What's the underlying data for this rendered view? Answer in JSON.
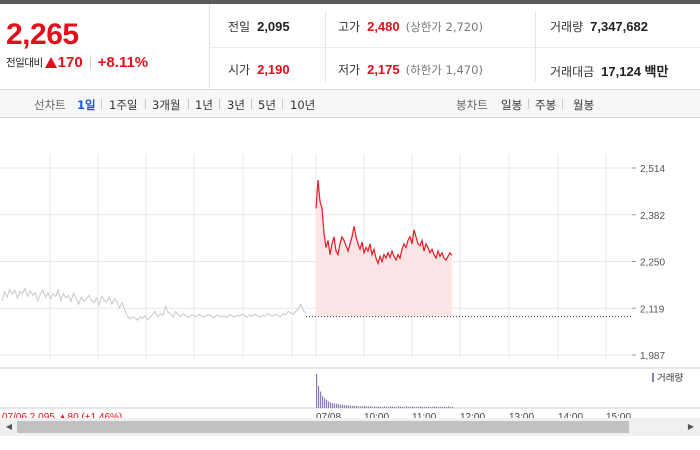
{
  "summary": {
    "current_price": "2,265",
    "change_label": "전일대비",
    "change_value": "170",
    "change_rate": "+8.11%",
    "prev_close_label": "전일",
    "prev_close": "2,095",
    "open_label": "시가",
    "open": "2,190",
    "high_label": "고가",
    "high": "2,480",
    "upper_limit": "(상한가 2,720)",
    "low_label": "저가",
    "low": "2,175",
    "lower_limit": "(하한가 1,470)",
    "volume_label": "거래량",
    "volume": "7,347,682",
    "amount_label": "거래대금",
    "amount": "17,124 백만"
  },
  "tabbar": {
    "line_title": "선차트",
    "line_tabs": [
      {
        "label": "1일",
        "active": true
      },
      {
        "label": "1주일",
        "active": false
      },
      {
        "label": "3개월",
        "active": false
      },
      {
        "label": "1년",
        "active": false
      },
      {
        "label": "3년",
        "active": false
      },
      {
        "label": "5년",
        "active": false
      },
      {
        "label": "10년",
        "active": false
      }
    ],
    "candle_title": "봉차트",
    "candle_tabs": [
      {
        "label": "일봉"
      },
      {
        "label": "주봉"
      },
      {
        "label": "월봉"
      }
    ]
  },
  "chart_data": {
    "type": "line",
    "y_ticks": [
      "2,514",
      "2,382",
      "2,250",
      "2,119",
      "1,987"
    ],
    "ylim": [
      1987,
      2514
    ],
    "reference_line": 2095,
    "volume_legend": "거래량",
    "colors": {
      "prev_day_line": "#c8c8c8",
      "today_line": "#e31b23",
      "today_fill": "#fde4e6",
      "volume_bars": "#8d7bb8",
      "grid": "#e9e9e9"
    },
    "prev_day_series": [
      2140,
      2165,
      2150,
      2172,
      2158,
      2170,
      2148,
      2166,
      2160,
      2175,
      2152,
      2168,
      2155,
      2162,
      2140,
      2158,
      2170,
      2150,
      2162,
      2145,
      2160,
      2152,
      2170,
      2140,
      2160,
      2148,
      2155,
      2138,
      2162,
      2146,
      2130,
      2150,
      2138,
      2145,
      2155,
      2140,
      2135,
      2148,
      2128,
      2152,
      2142,
      2136,
      2150,
      2130,
      2145,
      2138,
      2120,
      2135,
      2115,
      2098,
      2088,
      2095,
      2092,
      2085,
      2094,
      2090,
      2098,
      2086,
      2093,
      2102,
      2110,
      2095,
      2104,
      2098,
      2125,
      2108,
      2102,
      2094,
      2110,
      2100,
      2096,
      2104,
      2098,
      2092,
      2100,
      2098,
      2095,
      2102,
      2097,
      2093,
      2099,
      2101,
      2096,
      2092,
      2100,
      2097,
      2094,
      2098,
      2092,
      2101,
      2097,
      2094,
      2099,
      2096,
      2103,
      2098,
      2094,
      2100,
      2096,
      2102,
      2098,
      2093,
      2099,
      2096,
      2104,
      2100,
      2096,
      2102,
      2098,
      2094,
      2104,
      2100,
      2110,
      2106,
      2102,
      2110,
      2118,
      2130,
      2112,
      2104
    ],
    "today_series": [
      2400,
      2480,
      2420,
      2400,
      2330,
      2290,
      2310,
      2270,
      2300,
      2320,
      2280,
      2270,
      2300,
      2320,
      2310,
      2295,
      2280,
      2300,
      2320,
      2350,
      2320,
      2300,
      2285,
      2305,
      2275,
      2290,
      2280,
      2300,
      2270,
      2285,
      2260,
      2245,
      2265,
      2250,
      2270,
      2260,
      2275,
      2262,
      2280,
      2265,
      2255,
      2270,
      2260,
      2285,
      2300,
      2290,
      2310,
      2320,
      2300,
      2340,
      2320,
      2300,
      2295,
      2310,
      2280,
      2300,
      2290,
      2275,
      2285,
      2270,
      2260,
      2280,
      2265,
      2275,
      2260,
      2255,
      2265,
      2275,
      2268
    ],
    "today_volume": [
      62,
      40,
      30,
      22,
      18,
      15,
      12,
      10,
      9,
      8,
      8,
      7,
      6,
      6,
      5,
      5,
      5,
      4,
      4,
      4,
      4,
      3,
      3,
      3,
      4,
      3,
      3,
      3,
      2,
      3,
      2,
      3,
      2,
      2,
      3,
      2,
      2,
      3,
      2,
      2,
      2,
      3,
      2,
      2,
      2,
      3,
      2,
      2,
      3,
      2,
      2,
      2,
      3,
      2,
      2,
      2,
      2,
      2,
      2,
      3,
      2,
      2,
      2,
      2,
      2,
      2,
      3,
      2,
      2
    ],
    "x_tick_labels": [
      "07/06 2,095 ▲80 (+1.46%)",
      "07/08",
      "10:00",
      "11:00",
      "12:00",
      "13:00",
      "14:00",
      "15:00"
    ]
  }
}
